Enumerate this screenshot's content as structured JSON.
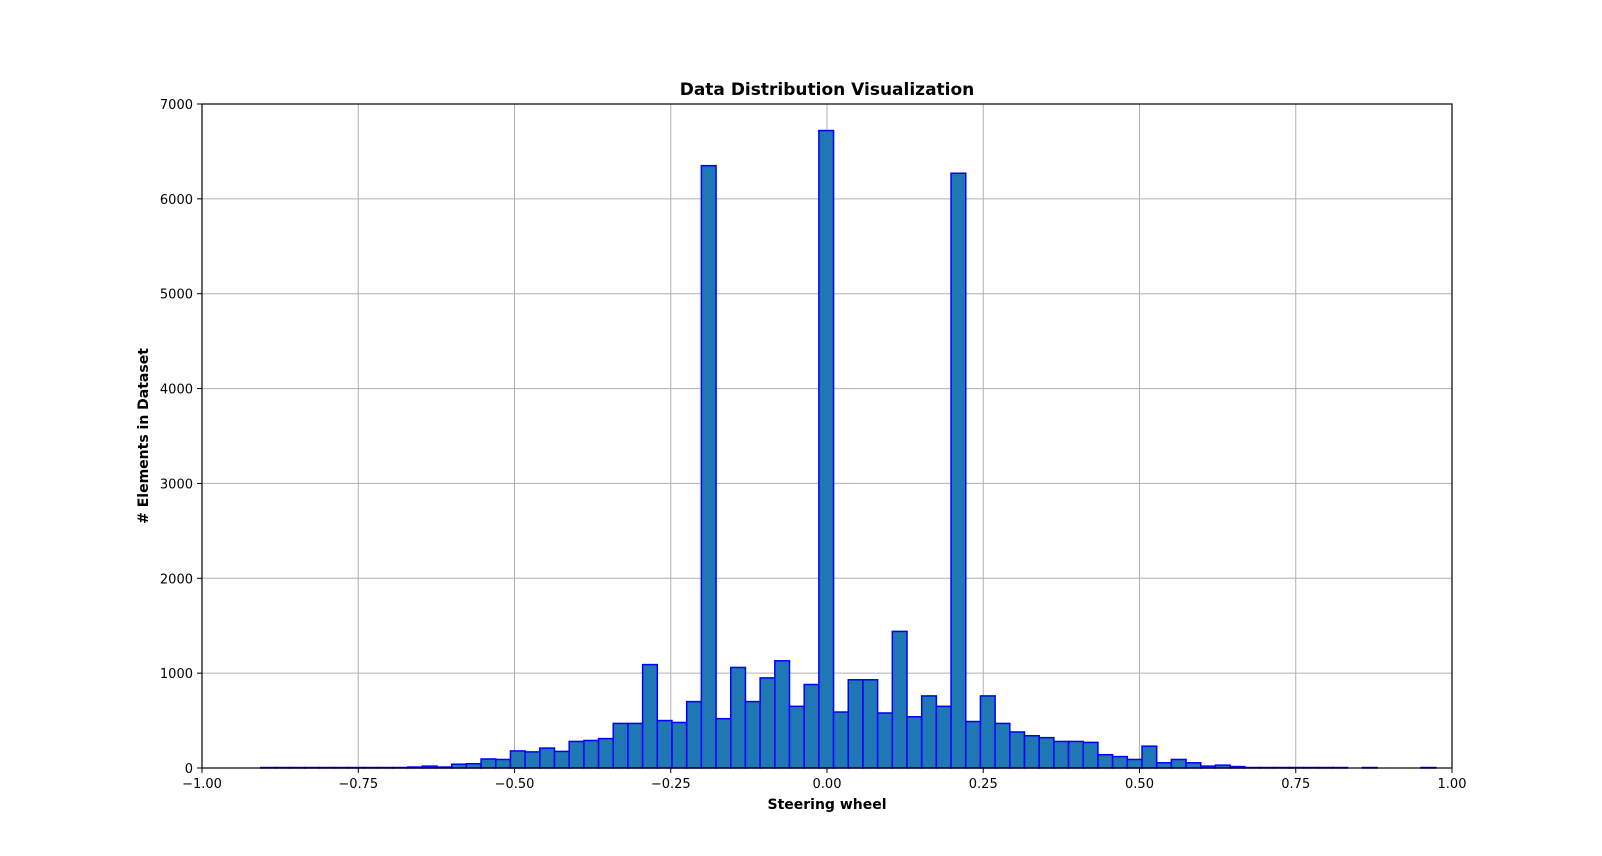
{
  "chart_data": {
    "type": "bar",
    "title": "Data Distribution Visualization",
    "xlabel": "Steering wheel",
    "ylabel": "# Elements in Dataset",
    "xlim": [
      -1.0,
      1.0
    ],
    "ylim": [
      0,
      7000
    ],
    "xticks": [
      -1.0,
      -0.75,
      -0.5,
      -0.25,
      0.0,
      0.25,
      0.5,
      0.75,
      1.0
    ],
    "xtick_labels": [
      "−1.00",
      "−0.75",
      "−0.50",
      "−0.25",
      "0.00",
      "0.25",
      "0.50",
      "0.75",
      "1.00"
    ],
    "yticks": [
      0,
      1000,
      2000,
      3000,
      4000,
      5000,
      6000,
      7000
    ],
    "ytick_labels": [
      "0",
      "1000",
      "2000",
      "3000",
      "4000",
      "5000",
      "6000",
      "7000"
    ],
    "grid": true,
    "bin_start": -1.0,
    "bin_width": 0.0235,
    "values": [
      0,
      0,
      0,
      0,
      5,
      5,
      5,
      5,
      5,
      5,
      5,
      5,
      5,
      5,
      10,
      20,
      10,
      40,
      45,
      95,
      90,
      180,
      170,
      210,
      175,
      280,
      290,
      310,
      470,
      470,
      1090,
      500,
      480,
      700,
      6350,
      520,
      1060,
      700,
      950,
      1130,
      650,
      880,
      6720,
      590,
      930,
      930,
      580,
      1440,
      540,
      760,
      650,
      6270,
      490,
      760,
      470,
      380,
      340,
      320,
      280,
      280,
      270,
      140,
      120,
      90,
      230,
      55,
      90,
      55,
      20,
      30,
      15,
      5,
      5,
      5,
      5,
      5,
      5,
      5,
      0,
      5,
      0,
      0,
      0,
      5,
      0,
      0
    ],
    "colors": {
      "bar_fill": "#1f77b4",
      "bar_edge": "#0000ff"
    }
  }
}
